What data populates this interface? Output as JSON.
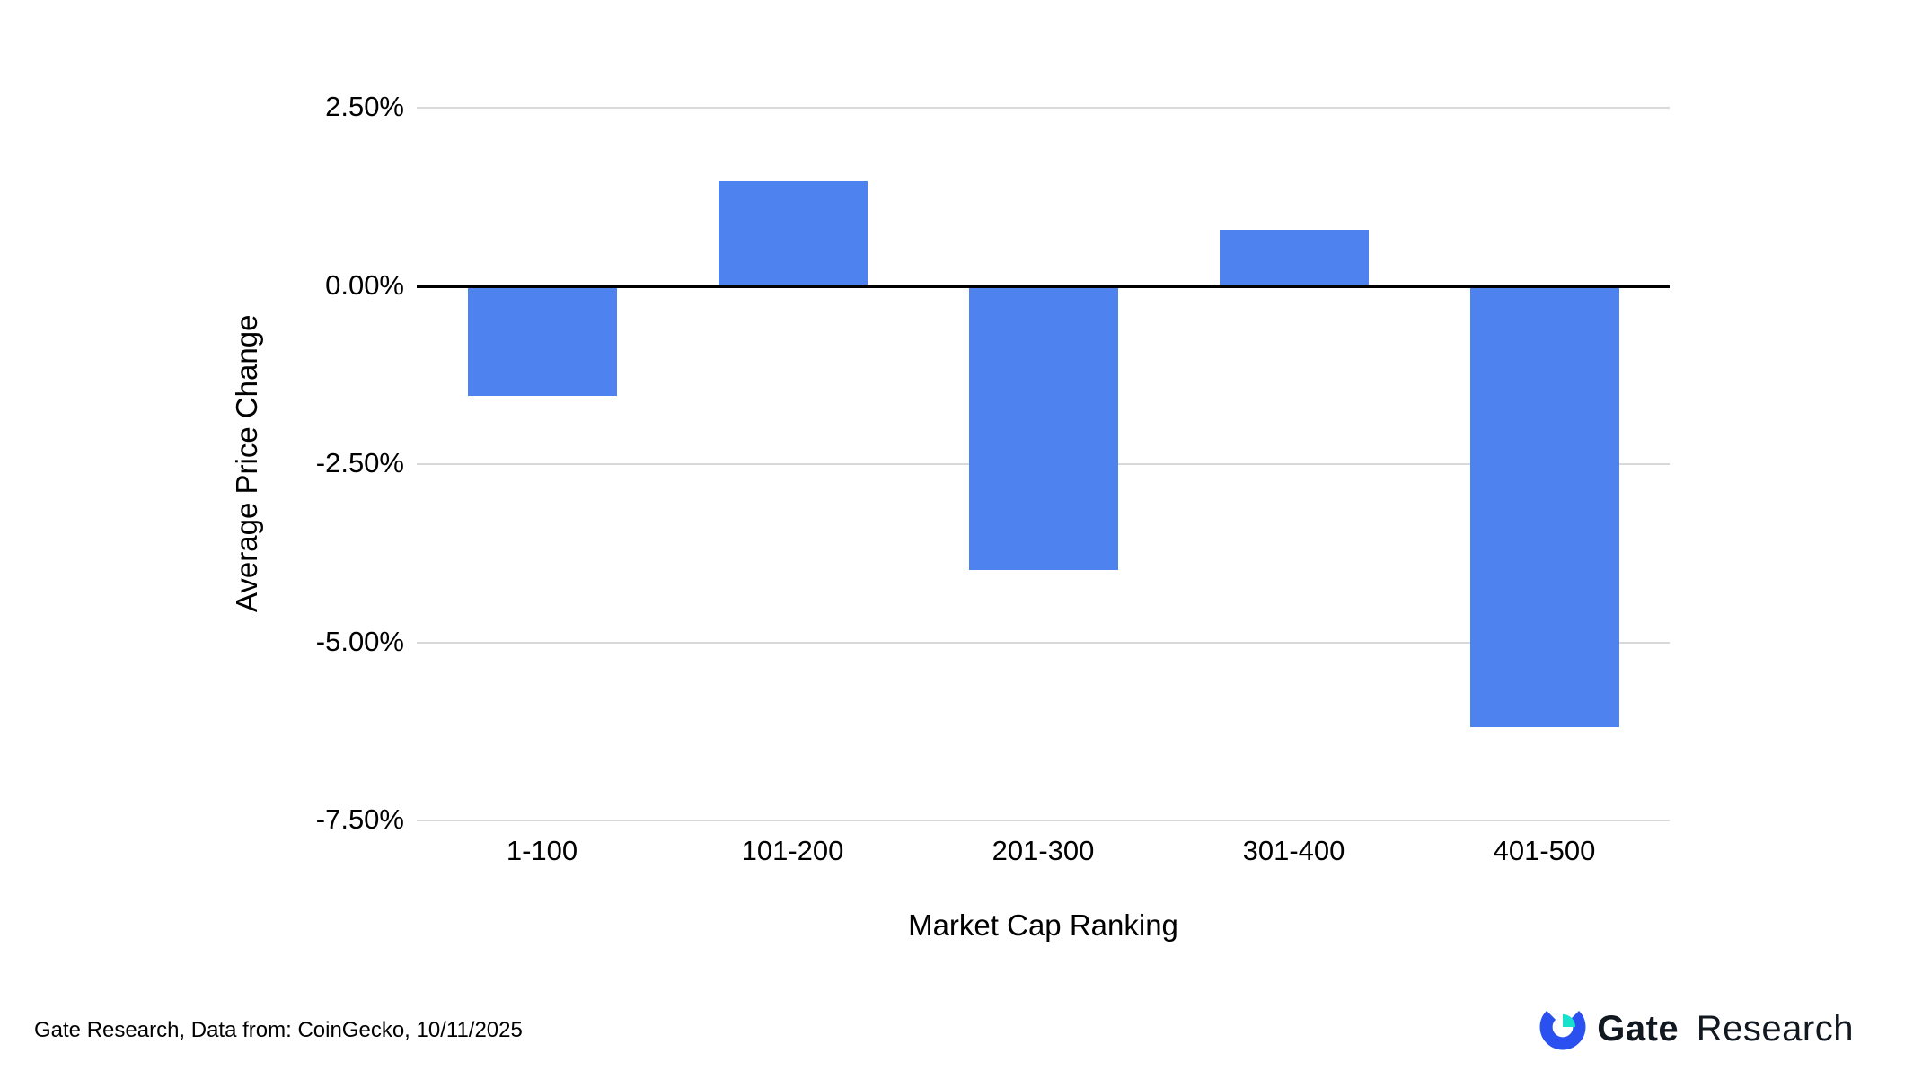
{
  "chart_data": {
    "type": "bar",
    "categories": [
      "1-100",
      "101-200",
      "201-300",
      "301-400",
      "401-500"
    ],
    "values": [
      -1.55,
      1.45,
      -4.0,
      0.77,
      -6.2
    ],
    "title": "",
    "xlabel": "Market Cap Ranking",
    "ylabel": "Average Price Change",
    "ylim": [
      -7.5,
      2.5
    ],
    "yticks": [
      {
        "value": 2.5,
        "label": "2.50%"
      },
      {
        "value": 0,
        "label": "0.00%"
      },
      {
        "value": -2.5,
        "label": "-2.50%"
      },
      {
        "value": -5,
        "label": "-5.00%"
      },
      {
        "value": -7.5,
        "label": "-7.50%"
      }
    ],
    "bar_color": "#4e82ee",
    "gridline_color": "#d9d9d9",
    "zero_line_color": "#000000",
    "grid": true,
    "legend": "none"
  },
  "footer": {
    "source_text": "Gate Research, Data from: CoinGecko, 10/11/2025",
    "logo_bold": "Gate",
    "logo_regular": "Research",
    "logo_blue": "#2b50f0",
    "logo_teal": "#17e0cc"
  }
}
